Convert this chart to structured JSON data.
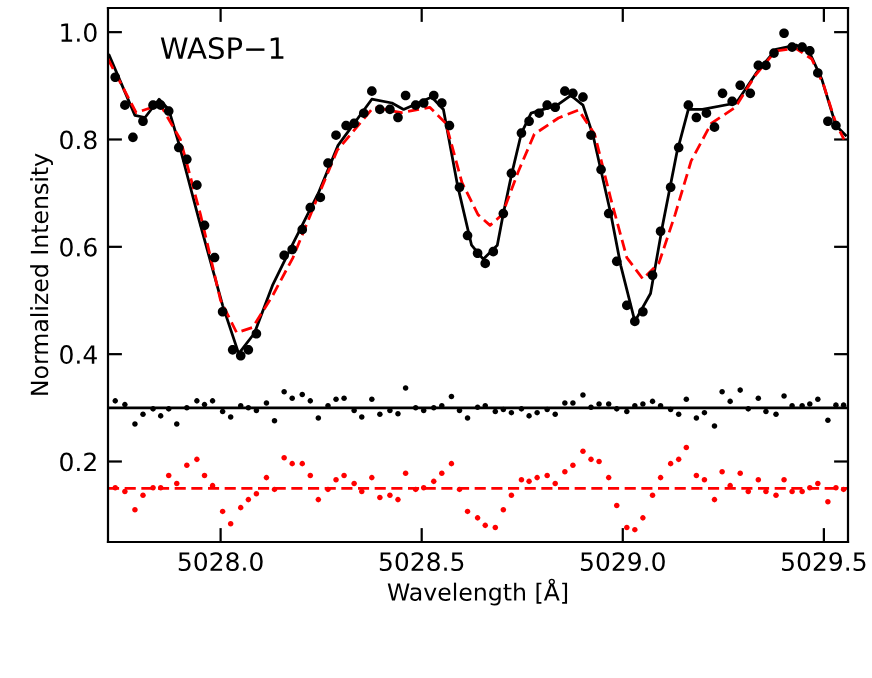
{
  "chart_data": {
    "type": "scatter",
    "xlabel": "Wavelength [Å]",
    "ylabel": "Normalized Intensity",
    "annotations": [
      "WASP−1"
    ],
    "xlim": [
      5027.72,
      5029.56
    ],
    "ylim": [
      0.05,
      1.045
    ],
    "xticks": [
      {
        "value": 5028,
        "label": "5028.0"
      },
      5028.5,
      {
        "value": 5029,
        "label": "5029.0"
      },
      5029.5
    ],
    "yticks": [
      0.2,
      0.4,
      0.6,
      0.8,
      {
        "value": 1,
        "label": "1.0"
      }
    ],
    "grid": false,
    "legend": false,
    "series": [
      {
        "type": "line",
        "color": "#000000",
        "line_style": "solid",
        "marker": "none",
        "x": [
          5027.723,
          5027.787,
          5027.812,
          5027.847,
          5027.871,
          5027.896,
          5027.946,
          5028.005,
          5028.045,
          5028.084,
          5028.129,
          5028.178,
          5028.243,
          5028.292,
          5028.376,
          5028.426,
          5028.455,
          5028.525,
          5028.554,
          5028.589,
          5028.624,
          5028.653,
          5028.688,
          5028.703,
          5028.723,
          5028.748,
          5028.772,
          5028.837,
          5028.871,
          5028.901,
          5028.926,
          5028.97,
          5028.995,
          5029.03,
          5029.069,
          5029.099,
          5029.134,
          5029.163,
          5029.198,
          5029.282,
          5029.332,
          5029.381,
          5029.431,
          5029.465,
          5029.495,
          5029.53,
          5029.554
        ],
        "values": [
          0.957,
          0.845,
          0.841,
          0.875,
          0.856,
          0.793,
          0.651,
          0.491,
          0.401,
          0.439,
          0.528,
          0.603,
          0.7,
          0.789,
          0.875,
          0.868,
          0.856,
          0.879,
          0.856,
          0.715,
          0.603,
          0.577,
          0.603,
          0.662,
          0.733,
          0.812,
          0.849,
          0.864,
          0.882,
          0.864,
          0.808,
          0.662,
          0.565,
          0.461,
          0.513,
          0.64,
          0.774,
          0.856,
          0.856,
          0.868,
          0.924,
          0.968,
          0.976,
          0.961,
          0.912,
          0.826,
          0.808
        ]
      },
      {
        "type": "line",
        "color": "#ff0000",
        "line_style": "dashed",
        "marker": "none",
        "x": [
          5027.72,
          5027.79,
          5027.85,
          5027.9,
          5027.95,
          5028.0,
          5028.04,
          5028.08,
          5028.13,
          5028.18,
          5028.24,
          5028.29,
          5028.38,
          5028.45,
          5028.52,
          5028.56,
          5028.6,
          5028.64,
          5028.67,
          5028.7,
          5028.74,
          5028.78,
          5028.84,
          5028.89,
          5028.93,
          5028.97,
          5029.01,
          5029.05,
          5029.09,
          5029.13,
          5029.17,
          5029.22,
          5029.28,
          5029.33,
          5029.38,
          5029.43,
          5029.47,
          5029.5,
          5029.53,
          5029.55
        ],
        "values": [
          0.95,
          0.85,
          0.865,
          0.8,
          0.66,
          0.5,
          0.44,
          0.45,
          0.51,
          0.58,
          0.69,
          0.78,
          0.86,
          0.85,
          0.86,
          0.83,
          0.72,
          0.66,
          0.64,
          0.66,
          0.74,
          0.81,
          0.84,
          0.855,
          0.81,
          0.69,
          0.58,
          0.54,
          0.57,
          0.66,
          0.76,
          0.83,
          0.86,
          0.92,
          0.965,
          0.97,
          0.95,
          0.9,
          0.83,
          0.8
        ]
      },
      {
        "color": "#000000",
        "marker": "circle",
        "x": [
          5027.738,
          5027.762,
          5027.782,
          5027.807,
          5027.832,
          5027.851,
          5027.871,
          5027.896,
          5027.916,
          5027.941,
          5027.96,
          5027.985,
          5028.005,
          5028.03,
          5028.05,
          5028.069,
          5028.089,
          5028.158,
          5028.178,
          5028.203,
          5028.223,
          5028.248,
          5028.267,
          5028.287,
          5028.312,
          5028.332,
          5028.356,
          5028.376,
          5028.396,
          5028.421,
          5028.441,
          5028.46,
          5028.485,
          5028.505,
          5028.53,
          5028.55,
          5028.569,
          5028.594,
          5028.614,
          5028.639,
          5028.658,
          5028.678,
          5028.703,
          5028.723,
          5028.748,
          5028.767,
          5028.792,
          5028.812,
          5028.832,
          5028.856,
          5028.876,
          5028.901,
          5028.921,
          5028.946,
          5028.965,
          5028.985,
          5029.01,
          5029.03,
          5029.05,
          5029.074,
          5029.094,
          5029.119,
          5029.139,
          5029.163,
          5029.183,
          5029.208,
          5029.228,
          5029.248,
          5029.272,
          5029.292,
          5029.317,
          5029.337,
          5029.356,
          5029.376,
          5029.401,
          5029.421,
          5029.446,
          5029.465,
          5029.485,
          5029.51,
          5029.53
        ],
        "values": [
          0.916,
          0.864,
          0.804,
          0.834,
          0.864,
          0.864,
          0.853,
          0.785,
          0.763,
          0.715,
          0.64,
          0.58,
          0.479,
          0.408,
          0.397,
          0.408,
          0.438,
          0.584,
          0.595,
          0.632,
          0.673,
          0.692,
          0.756,
          0.808,
          0.826,
          0.83,
          0.849,
          0.89,
          0.856,
          0.856,
          0.841,
          0.882,
          0.864,
          0.868,
          0.882,
          0.868,
          0.826,
          0.711,
          0.621,
          0.588,
          0.569,
          0.591,
          0.662,
          0.737,
          0.812,
          0.834,
          0.849,
          0.864,
          0.86,
          0.89,
          0.886,
          0.879,
          0.808,
          0.744,
          0.662,
          0.573,
          0.491,
          0.461,
          0.479,
          0.547,
          0.629,
          0.711,
          0.785,
          0.864,
          0.841,
          0.849,
          0.823,
          0.886,
          0.871,
          0.901,
          0.886,
          0.938,
          0.938,
          0.961,
          0.998,
          0.972,
          0.972,
          0.965,
          0.924,
          0.834,
          0.826
        ]
      },
      {
        "color": "#000000",
        "marker": "circle",
        "x": [
          5027.738,
          5027.762,
          5027.787,
          5027.807,
          5027.832,
          5027.851,
          5027.871,
          5027.891,
          5027.916,
          5027.941,
          5027.96,
          5027.98,
          5028.005,
          5028.025,
          5028.05,
          5028.069,
          5028.089,
          5028.114,
          5028.134,
          5028.158,
          5028.178,
          5028.203,
          5028.223,
          5028.243,
          5028.267,
          5028.287,
          5028.307,
          5028.332,
          5028.351,
          5028.376,
          5028.396,
          5028.421,
          5028.441,
          5028.46,
          5028.485,
          5028.505,
          5028.53,
          5028.55,
          5028.574,
          5028.594,
          5028.614,
          5028.639,
          5028.658,
          5028.683,
          5028.703,
          5028.723,
          5028.748,
          5028.767,
          5028.787,
          5028.812,
          5028.832,
          5028.856,
          5028.876,
          5028.901,
          5028.921,
          5028.941,
          5028.965,
          5028.985,
          5029.01,
          5029.03,
          5029.05,
          5029.074,
          5029.094,
          5029.119,
          5029.139,
          5029.158,
          5029.183,
          5029.203,
          5029.228,
          5029.247,
          5029.267,
          5029.292,
          5029.312,
          5029.337,
          5029.356,
          5029.381,
          5029.401,
          5029.421,
          5029.446,
          5029.465,
          5029.485,
          5029.51,
          5029.53,
          5029.549
        ],
        "values": [
          0.313,
          0.306,
          0.27,
          0.288,
          0.298,
          0.285,
          0.298,
          0.27,
          0.3,
          0.313,
          0.306,
          0.313,
          0.293,
          0.283,
          0.304,
          0.3,
          0.295,
          0.309,
          0.276,
          0.33,
          0.318,
          0.325,
          0.313,
          0.281,
          0.304,
          0.316,
          0.318,
          0.295,
          0.283,
          0.316,
          0.288,
          0.295,
          0.289,
          0.337,
          0.3,
          0.295,
          0.3,
          0.304,
          0.321,
          0.295,
          0.281,
          0.301,
          0.304,
          0.293,
          0.297,
          0.291,
          0.298,
          0.285,
          0.291,
          0.297,
          0.288,
          0.309,
          0.309,
          0.324,
          0.301,
          0.307,
          0.307,
          0.298,
          0.293,
          0.304,
          0.307,
          0.312,
          0.304,
          0.297,
          0.288,
          0.316,
          0.281,
          0.291,
          0.266,
          0.33,
          0.312,
          0.333,
          0.298,
          0.318,
          0.293,
          0.288,
          0.322,
          0.304,
          0.304,
          0.307,
          0.316,
          0.277,
          0.305,
          0.305
        ]
      },
      {
        "color": "#ff0000",
        "marker": "circle",
        "x": [
          5027.738,
          5027.762,
          5027.787,
          5027.807,
          5027.832,
          5027.851,
          5027.871,
          5027.891,
          5027.916,
          5027.941,
          5027.96,
          5027.98,
          5028.005,
          5028.025,
          5028.05,
          5028.069,
          5028.089,
          5028.114,
          5028.134,
          5028.158,
          5028.178,
          5028.203,
          5028.223,
          5028.243,
          5028.267,
          5028.287,
          5028.307,
          5028.332,
          5028.351,
          5028.376,
          5028.396,
          5028.421,
          5028.441,
          5028.46,
          5028.485,
          5028.505,
          5028.53,
          5028.55,
          5028.574,
          5028.594,
          5028.614,
          5028.639,
          5028.658,
          5028.683,
          5028.703,
          5028.723,
          5028.748,
          5028.767,
          5028.787,
          5028.812,
          5028.832,
          5028.856,
          5028.876,
          5028.901,
          5028.921,
          5028.941,
          5028.965,
          5028.985,
          5029.01,
          5029.03,
          5029.05,
          5029.074,
          5029.094,
          5029.119,
          5029.139,
          5029.158,
          5029.183,
          5029.203,
          5029.228,
          5029.247,
          5029.267,
          5029.292,
          5029.312,
          5029.337,
          5029.356,
          5029.381,
          5029.401,
          5029.421,
          5029.446,
          5029.465,
          5029.485,
          5029.51,
          5029.53,
          5029.549
        ],
        "values": [
          0.151,
          0.144,
          0.11,
          0.137,
          0.151,
          0.151,
          0.174,
          0.159,
          0.193,
          0.204,
          0.174,
          0.155,
          0.107,
          0.084,
          0.114,
          0.129,
          0.14,
          0.17,
          0.148,
          0.207,
          0.196,
          0.196,
          0.174,
          0.129,
          0.148,
          0.166,
          0.174,
          0.159,
          0.144,
          0.17,
          0.133,
          0.137,
          0.129,
          0.178,
          0.148,
          0.151,
          0.163,
          0.178,
          0.196,
          0.148,
          0.107,
          0.095,
          0.081,
          0.077,
          0.11,
          0.137,
          0.166,
          0.163,
          0.17,
          0.174,
          0.159,
          0.181,
          0.193,
          0.219,
          0.204,
          0.2,
          0.17,
          0.118,
          0.077,
          0.073,
          0.095,
          0.137,
          0.17,
          0.196,
          0.204,
          0.226,
          0.174,
          0.166,
          0.129,
          0.181,
          0.155,
          0.178,
          0.144,
          0.166,
          0.144,
          0.137,
          0.166,
          0.144,
          0.144,
          0.151,
          0.159,
          0.125,
          0.151,
          0.148
        ]
      }
    ],
    "ref_lines": [
      {
        "axis": "y",
        "value": 0.3,
        "color": "#000000",
        "line_style": "solid"
      },
      {
        "axis": "y",
        "value": 0.15,
        "color": "#ff0000",
        "line_style": "dashed"
      }
    ]
  }
}
